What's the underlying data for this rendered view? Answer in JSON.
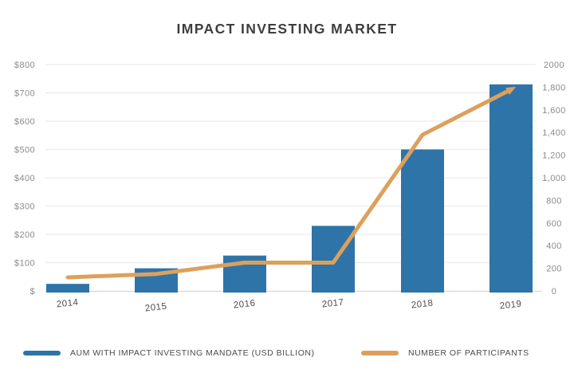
{
  "title": "IMPACT INVESTING MARKET",
  "chart_data": {
    "type": "bar",
    "subtype": "combo-bar-line-dual-axis",
    "title": "IMPACT INVESTING MARKET",
    "categories": [
      "2014",
      "2015",
      "2016",
      "2017",
      "2018",
      "2019"
    ],
    "series": [
      {
        "name": "AUM WITH IMPACT INVESTING MANDATE (USD BILLION)",
        "type": "bar",
        "axis": "left",
        "color": "#2e74a8",
        "values": [
          25,
          80,
          125,
          230,
          500,
          730
        ]
      },
      {
        "name": "NUMBER OF PARTICIPANTS",
        "type": "line",
        "axis": "right",
        "color": "#dda05b",
        "values": [
          120,
          150,
          250,
          250,
          1380,
          1780
        ]
      }
    ],
    "left_axis": {
      "min": 0,
      "max": 800,
      "step": 100,
      "tick_labels": [
        "$800",
        "$700",
        "$600",
        "$500",
        "$400",
        "$300",
        "$200",
        "$100",
        "$"
      ]
    },
    "right_axis": {
      "min": 0,
      "max": 2000,
      "step": 200,
      "tick_labels": [
        "2000",
        "1,800",
        "1,600",
        "1,400",
        "1,200",
        "1,000",
        "800",
        "600",
        "400",
        "200",
        "0"
      ]
    },
    "grid": true,
    "legend_position": "bottom",
    "colors": {
      "bar": "#2e74a8",
      "line": "#dda05b",
      "gridline": "#ececec",
      "baseline": "#dcdcdc",
      "axis_text": "#8a8a8a",
      "category_text": "#4d4d4d",
      "title_text": "#3e3e3e"
    }
  },
  "legend": {
    "items": [
      {
        "label": "AUM WITH IMPACT INVESTING MANDATE (USD BILLION)",
        "color": "#2e74a8"
      },
      {
        "label": "NUMBER OF PARTICIPANTS",
        "color": "#dda05b"
      }
    ]
  }
}
